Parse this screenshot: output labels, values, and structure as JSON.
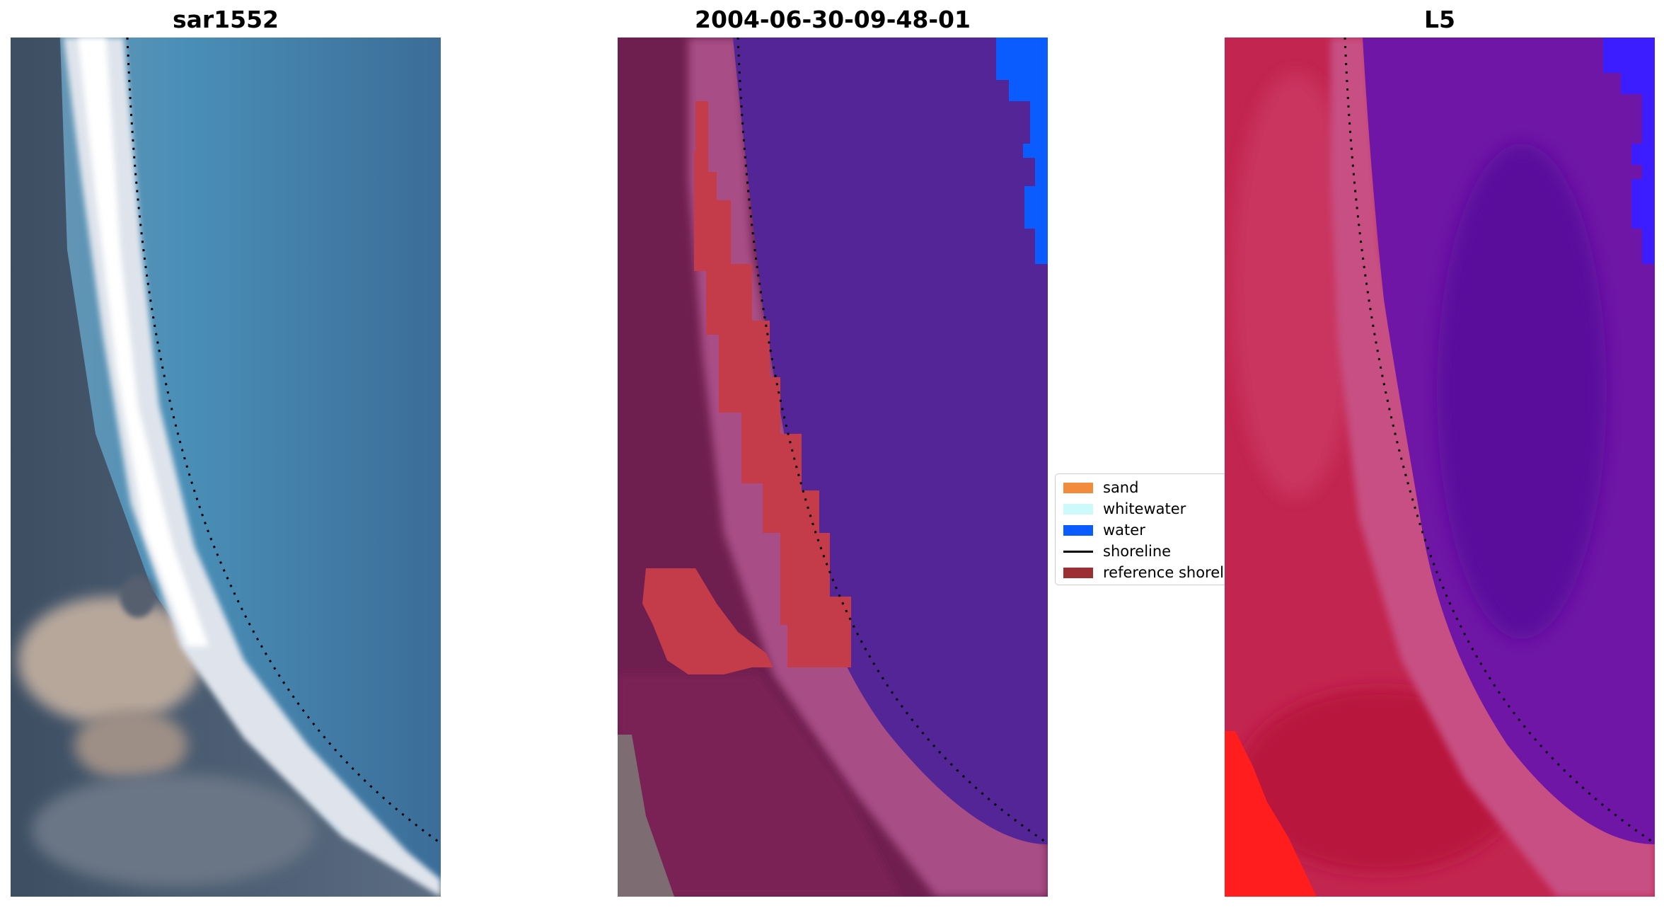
{
  "panels": [
    {
      "title": "sar1552"
    },
    {
      "title": "2004-06-30-09-48-01"
    },
    {
      "title": "L5"
    }
  ],
  "legend": {
    "items": [
      {
        "label": "sand",
        "color": "#f28b3c"
      },
      {
        "label": "whitewater",
        "color": "#ccfafa"
      },
      {
        "label": "water",
        "color": "#0a5cff"
      },
      {
        "label": "shoreline",
        "color": "#000000"
      },
      {
        "label": "reference shoreline",
        "color": "#9b2f33"
      }
    ]
  }
}
